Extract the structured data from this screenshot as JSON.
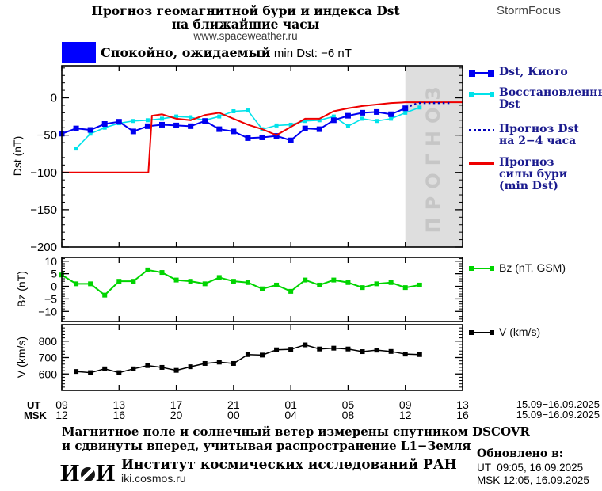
{
  "header": {
    "title_line1": "Прогноз геомагнитной бури и индекса Dst",
    "title_line2": "на ближайшие часы",
    "url": "www.spaceweather.ru",
    "brand": "StormFocus"
  },
  "status": {
    "label_ru": "Спокойно, ожидаемый",
    "label_en": "min Dst: −6 nT"
  },
  "colors": {
    "blue": "#0000f0",
    "cyan": "#00e2ea",
    "red": "#ee0000",
    "navy": "#0000bb",
    "green": "#00d400",
    "black": "#000000",
    "legend_text": "#1a1a8e",
    "grey_region": "#dedede",
    "grey_text": "#c6c6c6",
    "status_box": "#0000ff"
  },
  "legend": {
    "dst_kyoto": "Dst, Киото",
    "restored_line1": "Восстановленный",
    "restored_line2": "Dst",
    "forecast_line1": "Прогноз Dst",
    "forecast_line2": "на 2−4 часа",
    "storm_line1": "Прогноз",
    "storm_line2": "силы бури",
    "storm_line3": "(min Dst)",
    "bz": "Bz (nT, GSM)",
    "v": "V (km/s)"
  },
  "axes": {
    "dst_label": "Dst (nT)",
    "bz_label": "Bz (nT)",
    "v_label": "V (km/s)",
    "ut_prefix": "UT",
    "msk_prefix": "MSK",
    "tick_hours": [
      0,
      4,
      8,
      12,
      16,
      20,
      24,
      28
    ],
    "ut_ticks": [
      "09",
      "13",
      "17",
      "21",
      "01",
      "05",
      "09",
      "13"
    ],
    "msk_ticks": [
      "12",
      "16",
      "20",
      "00",
      "04",
      "08",
      "12",
      "16"
    ],
    "date_range_ut": "15.09−16.09.2025",
    "date_range_msk": "15.09−16.09.2025"
  },
  "footer": {
    "note_line1": "Магнитное поле и солнечный ветер измерены спутником DSCOVR",
    "note_line2": "и сдвинуты вперед, учитывая распространение L1−Земля",
    "logo_left": "И",
    "logo_right": "И",
    "institute": "Институт космических исследований РАН",
    "institute_url": "iki.cosmos.ru",
    "updated_label": "Обновлено в:",
    "updated_ut": "UT  09:05, 16.09.2025",
    "updated_msk": "MSK 12:05, 16.09.2025"
  },
  "chart_data": [
    {
      "type": "line",
      "panel": "dst",
      "ylabel": "Dst (nT)",
      "ylim": [
        -200,
        43
      ],
      "yticks": [
        0,
        -50,
        -100,
        -150,
        -200
      ],
      "x_axis": {
        "start": "15.09.2025 09:00 UT",
        "end": "16.09.2025 13:00 UT",
        "major_tick_hours_ut": [
          "09",
          "13",
          "17",
          "21",
          "01",
          "05",
          "09",
          "13"
        ]
      },
      "forecast_region": {
        "from_hour": 24,
        "to_hour": 28,
        "label": "ПРОГНОЗ"
      },
      "series": [
        {
          "name": "Восстановленный Dst",
          "color_key": "cyan",
          "marker": 5,
          "width": 1.6,
          "start_hour": 1,
          "step": 1,
          "values": [
            -68,
            -48,
            -40,
            -34,
            -31,
            -30,
            -28,
            -25,
            -26,
            -30,
            -25,
            -18,
            -17,
            -42,
            -37,
            -36,
            -31,
            -30,
            -25,
            -38,
            -28,
            -31,
            -28,
            -20,
            -13
          ]
        },
        {
          "name": "Dst, Киото",
          "color_key": "blue",
          "marker": 7,
          "width": 2,
          "start_hour": 0,
          "step": 1,
          "values": [
            -48,
            -41,
            -43,
            -35,
            -32,
            -45,
            -38,
            -36,
            -37,
            -38,
            -31,
            -42,
            -45,
            -54,
            -53,
            -51,
            -57,
            -41,
            -42,
            -30,
            -24,
            -20,
            -19,
            -22,
            -14
          ]
        },
        {
          "name": "Прогноз силы бури (min Dst)",
          "color_key": "red",
          "width": 2,
          "points": [
            [
              0,
              -100
            ],
            [
              6.05,
              -100
            ],
            [
              6.3,
              -24
            ],
            [
              7,
              -22
            ],
            [
              8,
              -28
            ],
            [
              9,
              -30
            ],
            [
              10,
              -23
            ],
            [
              11,
              -20
            ],
            [
              12,
              -28
            ],
            [
              13,
              -36
            ],
            [
              14,
              -42
            ],
            [
              15,
              -50
            ],
            [
              16,
              -39
            ],
            [
              17,
              -28
            ],
            [
              18,
              -28
            ],
            [
              19,
              -18
            ],
            [
              20,
              -14
            ],
            [
              21,
              -11
            ],
            [
              22,
              -9
            ],
            [
              23,
              -7
            ],
            [
              24,
              -6
            ],
            [
              28,
              -6
            ]
          ]
        },
        {
          "name": "Прогноз Dst на 2−4 часа",
          "color_key": "navy",
          "width": 2.6,
          "dash": "2.5 3.5",
          "points": [
            [
              24,
              -13
            ],
            [
              24.6,
              -9
            ],
            [
              25,
              -7
            ],
            [
              27.2,
              -7
            ]
          ]
        }
      ]
    },
    {
      "type": "line",
      "panel": "bz",
      "ylabel": "Bz (nT)",
      "ylim": [
        -14,
        11.5
      ],
      "yticks": [
        10,
        5,
        0,
        -5,
        -10
      ],
      "series": [
        {
          "name": "Bz (nT, GSM)",
          "color_key": "green",
          "marker": 6,
          "width": 2,
          "start_hour": 0,
          "step": 1,
          "values": [
            4.5,
            1,
            1,
            -3.5,
            2,
            2,
            6.5,
            5.5,
            2.5,
            2,
            1,
            3.5,
            2,
            1.5,
            -1,
            0.5,
            -2,
            2.5,
            0.5,
            2.5,
            1.5,
            -0.5,
            1,
            1.5,
            -0.5,
            0.5
          ]
        }
      ]
    },
    {
      "type": "line",
      "panel": "v",
      "ylabel": "V (km/s)",
      "ylim": [
        500,
        900
      ],
      "yticks": [
        600,
        700,
        800
      ],
      "series": [
        {
          "name": "V (km/s)",
          "color_key": "black",
          "marker": 6,
          "width": 1.5,
          "start_hour": 1,
          "step": 1,
          "values": [
            615,
            608,
            631,
            608,
            631,
            651,
            640,
            622,
            644,
            664,
            672,
            664,
            718,
            715,
            747,
            750,
            777,
            752,
            757,
            752,
            736,
            745,
            737,
            721,
            718
          ]
        }
      ]
    }
  ]
}
